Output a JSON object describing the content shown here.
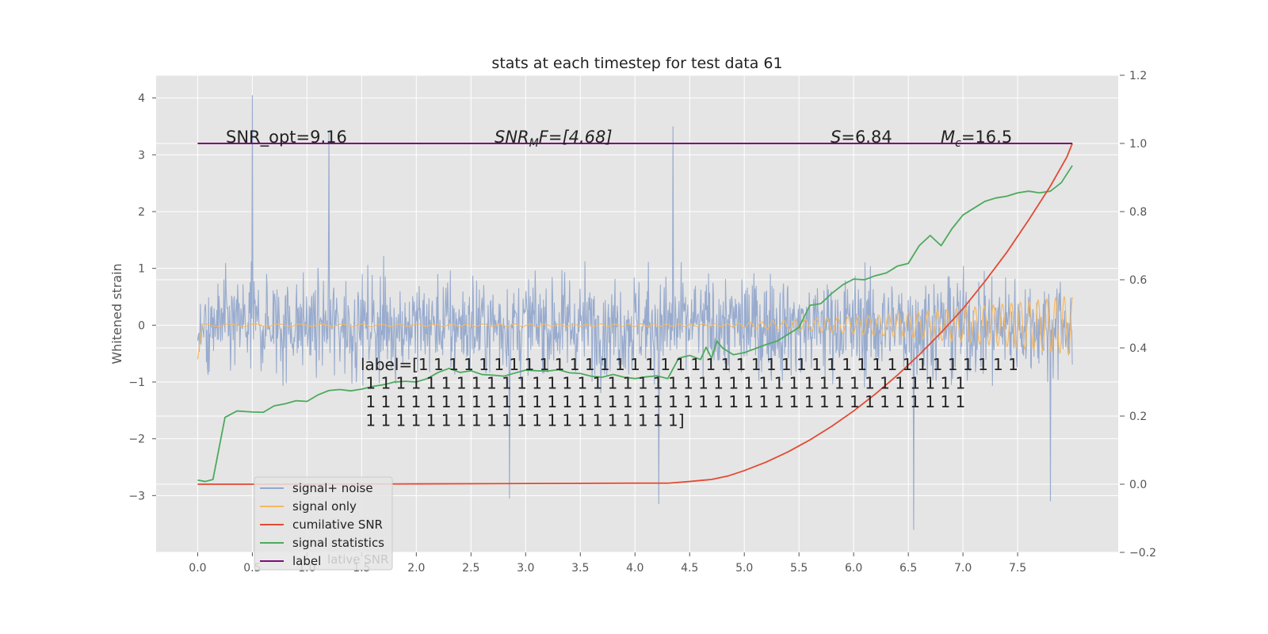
{
  "chart_data": {
    "type": "line",
    "title": "stats at each timestep for test data 61",
    "xlabel": "",
    "ylabel": "Whitened strain",
    "y2label": "",
    "xlim": [
      -0.38,
      8.42
    ],
    "ylim": [
      -4.0,
      4.4
    ],
    "y2lim": [
      -0.2,
      1.2
    ],
    "x_ticks": [
      0.0,
      0.5,
      1.0,
      1.5,
      2.0,
      2.5,
      3.0,
      3.5,
      4.0,
      4.5,
      5.0,
      5.5,
      6.0,
      6.5,
      7.0,
      7.5
    ],
    "x_tick_labels": [
      "0.0",
      "0.5",
      "1.0",
      "1.5",
      "2.0",
      "2.5",
      "3.0",
      "3.5",
      "4.0",
      "4.5",
      "5.0",
      "5.5",
      "6.0",
      "6.5",
      "7.0",
      "7.5"
    ],
    "y_ticks": [
      4,
      3,
      2,
      1,
      0,
      -1,
      -2,
      -3
    ],
    "y_tick_labels": [
      "4",
      "3",
      "2",
      "1",
      "0",
      "−1",
      "−2",
      "−3"
    ],
    "y2_ticks": [
      1.2,
      1.0,
      0.8,
      0.6,
      0.4,
      0.2,
      0.0,
      -0.2
    ],
    "y2_tick_labels": [
      "1.2",
      "1.0",
      "0.8",
      "0.6",
      "0.4",
      "0.2",
      "0.0",
      "−0.2"
    ],
    "grid": true,
    "legend_position": "lower-left",
    "colors": {
      "signal_noise": "#93a8cc",
      "signal_only": "#f5b860",
      "cumulative_snr": "#e24a33",
      "signal_statistics": "#4daa5d",
      "label": "#7b0f7b",
      "background": "#e5e5e5"
    },
    "series": [
      {
        "name": "signal+ noise",
        "axis": "left",
        "description_values": {
          "x_start": 0.0,
          "x_end": 8.0,
          "typical_range": [
            -2.0,
            2.0
          ],
          "peaks": [
            {
              "x": 0.5,
              "y": 4.05
            },
            {
              "x": 1.2,
              "y": 3.4
            },
            {
              "x": 4.35,
              "y": 3.5
            },
            {
              "x": 6.55,
              "y": -3.6
            },
            {
              "x": 4.22,
              "y": -3.15
            },
            {
              "x": 2.85,
              "y": -3.05
            },
            {
              "x": 7.8,
              "y": -3.1
            }
          ]
        }
      },
      {
        "name": "signal only",
        "axis": "left",
        "description_values": {
          "x_start": 0.0,
          "x_end": 8.0,
          "amplitude_envelope": [
            [
              0.0,
              0.02
            ],
            [
              4.8,
              0.02
            ],
            [
              5.3,
              0.08
            ],
            [
              6.0,
              0.15
            ],
            [
              6.5,
              0.22
            ],
            [
              7.0,
              0.3
            ],
            [
              7.5,
              0.4
            ],
            [
              8.0,
              0.52
            ]
          ]
        }
      },
      {
        "name": "cumilative SNR",
        "axis": "right",
        "x": [
          0.0,
          0.5,
          1.0,
          2.0,
          3.0,
          4.0,
          4.3,
          4.5,
          4.7,
          4.85,
          5.0,
          5.2,
          5.4,
          5.6,
          5.8,
          6.0,
          6.2,
          6.4,
          6.6,
          6.8,
          7.0,
          7.2,
          7.4,
          7.6,
          7.8,
          7.95,
          8.0
        ],
        "values": [
          0.0,
          0.0,
          0.0,
          0.001,
          0.002,
          0.003,
          0.003,
          0.008,
          0.014,
          0.024,
          0.04,
          0.065,
          0.095,
          0.13,
          0.17,
          0.215,
          0.265,
          0.32,
          0.38,
          0.445,
          0.515,
          0.595,
          0.68,
          0.775,
          0.875,
          0.96,
          1.0
        ]
      },
      {
        "name": "signal statistics",
        "axis": "right",
        "x": [
          0.0,
          0.07,
          0.14,
          0.25,
          0.36,
          0.5,
          0.6,
          0.7,
          0.8,
          0.9,
          1.0,
          1.1,
          1.2,
          1.3,
          1.4,
          1.5,
          1.6,
          1.7,
          1.8,
          1.9,
          2.0,
          2.1,
          2.2,
          2.3,
          2.4,
          2.5,
          2.6,
          2.7,
          2.8,
          2.9,
          3.0,
          3.1,
          3.2,
          3.3,
          3.4,
          3.5,
          3.6,
          3.7,
          3.8,
          3.9,
          4.0,
          4.1,
          4.2,
          4.3,
          4.4,
          4.5,
          4.6,
          4.65,
          4.7,
          4.75,
          4.8,
          4.9,
          5.0,
          5.1,
          5.2,
          5.3,
          5.4,
          5.5,
          5.6,
          5.7,
          5.8,
          5.9,
          6.0,
          6.1,
          6.2,
          6.3,
          6.4,
          6.5,
          6.6,
          6.7,
          6.8,
          6.9,
          7.0,
          7.1,
          7.2,
          7.3,
          7.4,
          7.5,
          7.6,
          7.7,
          7.8,
          7.9,
          8.0
        ],
        "values": [
          0.012,
          0.008,
          0.014,
          0.196,
          0.215,
          0.212,
          0.211,
          0.23,
          0.236,
          0.245,
          0.243,
          0.262,
          0.275,
          0.278,
          0.274,
          0.279,
          0.287,
          0.292,
          0.3,
          0.302,
          0.3,
          0.31,
          0.328,
          0.34,
          0.328,
          0.333,
          0.322,
          0.32,
          0.317,
          0.326,
          0.335,
          0.333,
          0.332,
          0.336,
          0.327,
          0.325,
          0.317,
          0.314,
          0.322,
          0.314,
          0.31,
          0.315,
          0.318,
          0.31,
          0.37,
          0.378,
          0.366,
          0.402,
          0.37,
          0.42,
          0.4,
          0.38,
          0.386,
          0.398,
          0.41,
          0.42,
          0.44,
          0.46,
          0.525,
          0.53,
          0.56,
          0.585,
          0.602,
          0.6,
          0.612,
          0.62,
          0.64,
          0.648,
          0.7,
          0.73,
          0.7,
          0.75,
          0.79,
          0.81,
          0.83,
          0.84,
          0.845,
          0.855,
          0.86,
          0.855,
          0.86,
          0.885,
          0.935
        ]
      },
      {
        "name": "label",
        "axis": "right",
        "x": [
          0.0,
          8.0
        ],
        "values": [
          1.0,
          1.0
        ]
      }
    ],
    "legend": {
      "entries": [
        "signal+ noise",
        "signal only",
        "cumilative SNR",
        "signal statistics",
        "label"
      ],
      "ghost_text": "lative SNR"
    },
    "annotations": {
      "snr_opt": "SNR_opt=9.16",
      "snr_mf_prefix": "SNR",
      "snr_mf_sub": "M",
      "snr_mf_suffix": "F=[4.68]",
      "s_name": "S",
      "s_value": "=6.84",
      "mc_name": "M",
      "mc_sub": "c",
      "mc_value": "=16.5",
      "label_lines": [
        "label=[1 1 1 1 1 1 1 1 1 1 1 1 1 1 1 1 1 1 1 1 1 1 1 1 1 1 1 1 1 1 1 1 1 1 1 1 1 1 1 1",
        " 1 1 1 1 1 1 1 1 1 1 1 1 1 1 1 1 1 1 1 1 1 1 1 1 1 1 1 1 1 1 1 1 1 1 1 1 1 1 1 1",
        " 1 1 1 1 1 1 1 1 1 1 1 1 1 1 1 1 1 1 1 1 1 1 1 1 1 1 1 1 1 1 1 1 1 1 1 1 1 1 1 1",
        " 1 1 1 1 1 1 1 1 1 1 1 1 1 1 1 1 1 1 1 1 1]"
      ]
    }
  }
}
